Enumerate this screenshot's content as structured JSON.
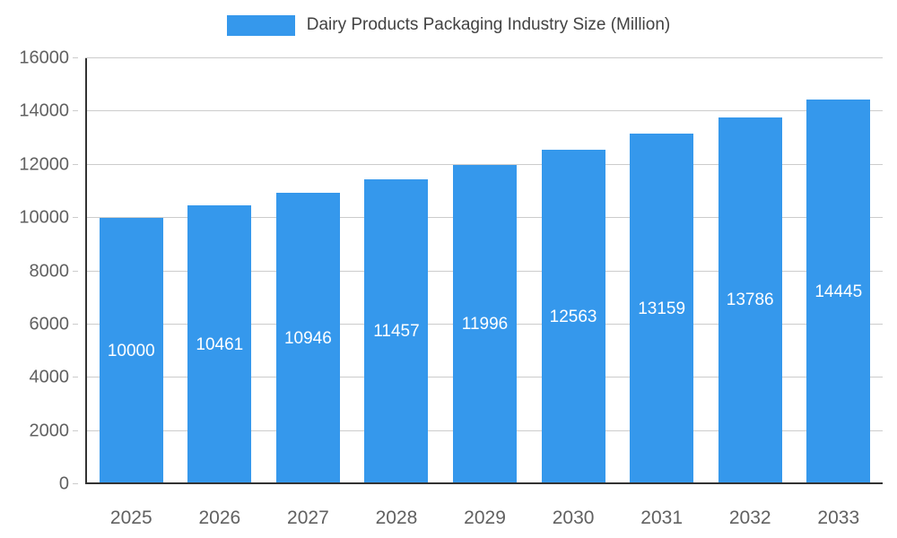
{
  "legend": {
    "label": "Dairy Products Packaging Industry Size (Million)"
  },
  "chart_data": {
    "type": "bar",
    "title": "Dairy Products Packaging Industry Size (Million)",
    "categories": [
      "2025",
      "2026",
      "2027",
      "2028",
      "2029",
      "2030",
      "2031",
      "2032",
      "2033"
    ],
    "values": [
      10000,
      10461,
      10946,
      11457,
      11996,
      12563,
      13159,
      13786,
      14445
    ],
    "xlabel": "",
    "ylabel": "",
    "ylim": [
      0,
      16000
    ],
    "ytick_step": 2000,
    "grid": true,
    "legend_position": "top",
    "colors": {
      "bar": "#3598EC",
      "value_label": "#FFFFFF",
      "grid_line": "#CCCCCC",
      "axis_line": "#333333",
      "tick_label": "#616161",
      "title_text": "#424242"
    }
  }
}
